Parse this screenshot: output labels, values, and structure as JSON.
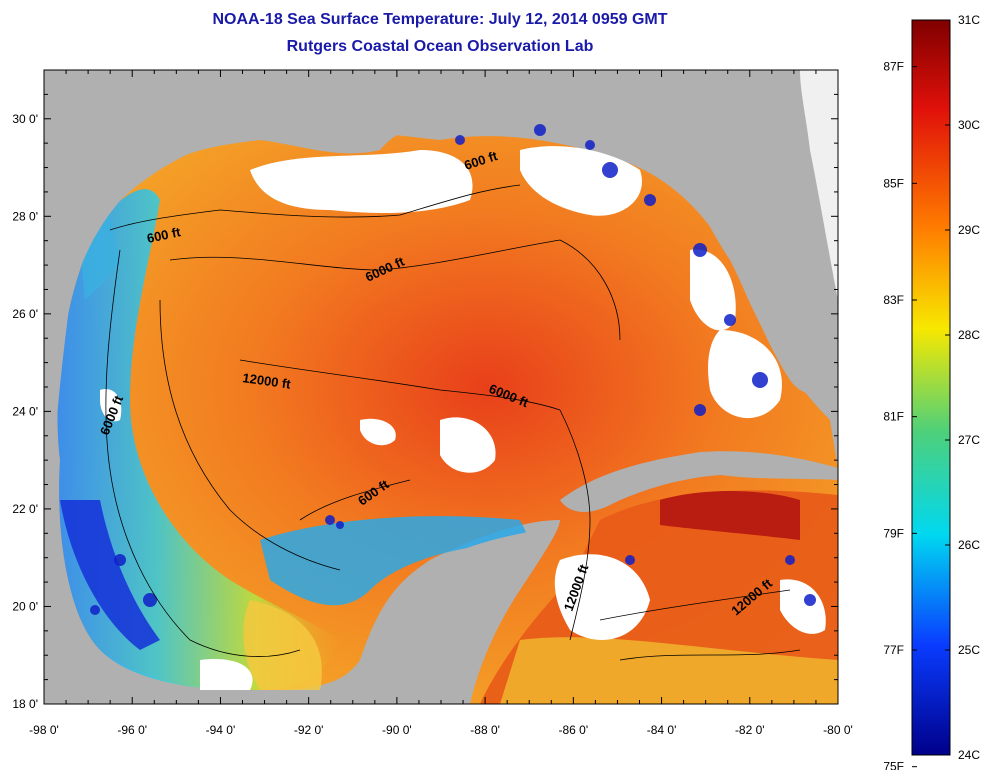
{
  "title": "NOAA-18 Sea Surface Temperature:  July 12, 2014 0959 GMT",
  "subtitle": "Rutgers Coastal Ocean Observation Lab",
  "x_ticks": [
    "-98 0'",
    "-96 0'",
    "-94 0'",
    "-92 0'",
    "-90 0'",
    "-88 0'",
    "-86 0'",
    "-84 0'",
    "-82 0'",
    "-80 0'"
  ],
  "y_ticks": [
    "30 0'",
    "28 0'",
    "26 0'",
    "24 0'",
    "22 0'",
    "20 0'",
    "18 0'"
  ],
  "contour_labels": [
    "600 ft",
    "600 ft",
    "6000 ft",
    "12000 ft",
    "6000 ft",
    "6000 ft",
    "600 ft",
    "12000 ft",
    "12000 ft"
  ],
  "colorbar": {
    "celsius": [
      "31C",
      "30C",
      "29C",
      "28C",
      "27C",
      "26C",
      "25C",
      "24C"
    ],
    "fahrenheit": [
      "87F",
      "85F",
      "83F",
      "81F",
      "79F",
      "77F",
      "75F"
    ]
  },
  "colors": {
    "land": "#b0b0b0",
    "cloud": "#ffffff",
    "title": "#1a1aa8"
  },
  "legend_position": "right"
}
